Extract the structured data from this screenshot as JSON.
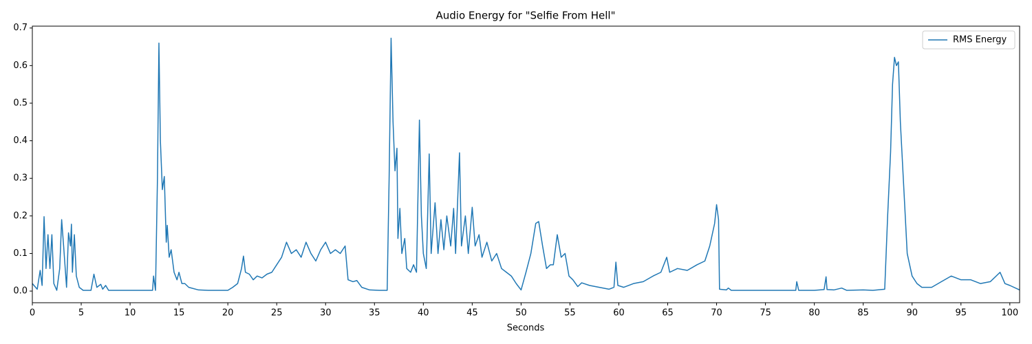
{
  "chart_data": {
    "type": "line",
    "title": "Audio Energy for \"Selfie From Hell\"",
    "xlabel": "Seconds",
    "x": [
      0,
      0.5,
      0.8,
      1.0,
      1.2,
      1.4,
      1.6,
      1.8,
      2.0,
      2.2,
      2.5,
      2.8,
      3.0,
      3.2,
      3.5,
      3.7,
      3.9,
      4.0,
      4.1,
      4.3,
      4.5,
      4.8,
      5.2,
      6.0,
      6.3,
      6.6,
      7.0,
      7.2,
      7.5,
      7.8,
      9,
      11,
      12.3,
      12.4,
      12.6,
      12.8,
      12.95,
      13.1,
      13.3,
      13.5,
      13.7,
      13.8,
      14.0,
      14.2,
      14.5,
      14.8,
      15.0,
      15.3,
      15.6,
      16,
      17,
      18,
      19,
      20,
      20.5,
      21,
      21.4,
      21.6,
      21.8,
      22.2,
      22.6,
      23,
      23.5,
      24,
      24.5,
      25,
      25.5,
      26,
      26.5,
      27,
      27.5,
      28,
      28.5,
      29,
      29.5,
      30,
      30.5,
      31,
      31.5,
      32,
      32.3,
      32.8,
      33.2,
      33.7,
      34.5,
      35.5,
      36.3,
      36.5,
      36.7,
      36.9,
      37.1,
      37.3,
      37.4,
      37.6,
      37.8,
      38.1,
      38.3,
      38.7,
      39.0,
      39.3,
      39.6,
      39.8,
      40.0,
      40.3,
      40.6,
      40.8,
      41.2,
      41.5,
      41.8,
      42.1,
      42.4,
      42.8,
      43.1,
      43.3,
      43.7,
      43.9,
      44.3,
      44.6,
      45.0,
      45.3,
      45.7,
      46.0,
      46.5,
      47.0,
      47.5,
      48,
      48.5,
      49,
      49.5,
      50,
      50.5,
      51,
      51.5,
      51.8,
      52.2,
      52.6,
      53,
      53.3,
      53.7,
      54.1,
      54.5,
      54.9,
      55.3,
      55.8,
      56.2,
      57,
      58,
      59,
      59.5,
      59.7,
      59.9,
      60.5,
      61.5,
      62.5,
      63.5,
      64.3,
      64.9,
      65.2,
      66,
      67,
      68,
      68.8,
      69.3,
      69.8,
      70.0,
      70.2,
      70.3,
      71,
      71.2,
      71.5,
      73,
      75,
      78.1,
      78.2,
      78.4,
      80,
      81,
      81.2,
      81.3,
      82,
      82.8,
      83.3,
      85,
      86,
      87.2,
      87.5,
      87.8,
      88.0,
      88.2,
      88.4,
      88.6,
      88.8,
      89.1,
      89.5,
      90,
      90.5,
      91,
      92,
      93,
      94,
      95,
      96,
      97,
      98,
      99,
      99.5,
      100,
      101
    ],
    "series": [
      {
        "name": "RMS Energy",
        "color": "#1f77b4",
        "values": [
          0.02,
          0.005,
          0.055,
          0.015,
          0.198,
          0.06,
          0.15,
          0.06,
          0.15,
          0.02,
          0.002,
          0.06,
          0.19,
          0.12,
          0.01,
          0.155,
          0.12,
          0.178,
          0.05,
          0.15,
          0.04,
          0.01,
          0.002,
          0.002,
          0.045,
          0.01,
          0.018,
          0.005,
          0.015,
          0.002,
          0.002,
          0.002,
          0.002,
          0.04,
          0.002,
          0.3,
          0.66,
          0.4,
          0.27,
          0.305,
          0.13,
          0.175,
          0.09,
          0.11,
          0.05,
          0.03,
          0.05,
          0.02,
          0.02,
          0.01,
          0.003,
          0.002,
          0.002,
          0.002,
          0.01,
          0.02,
          0.06,
          0.093,
          0.05,
          0.045,
          0.03,
          0.04,
          0.035,
          0.045,
          0.05,
          0.07,
          0.09,
          0.13,
          0.1,
          0.11,
          0.09,
          0.13,
          0.1,
          0.08,
          0.11,
          0.13,
          0.1,
          0.11,
          0.1,
          0.12,
          0.03,
          0.025,
          0.028,
          0.01,
          0.003,
          0.002,
          0.002,
          0.3,
          0.673,
          0.45,
          0.32,
          0.38,
          0.14,
          0.22,
          0.1,
          0.14,
          0.06,
          0.05,
          0.07,
          0.05,
          0.455,
          0.2,
          0.1,
          0.06,
          0.365,
          0.1,
          0.235,
          0.1,
          0.19,
          0.11,
          0.2,
          0.12,
          0.22,
          0.1,
          0.368,
          0.12,
          0.2,
          0.1,
          0.223,
          0.12,
          0.15,
          0.09,
          0.13,
          0.08,
          0.1,
          0.06,
          0.05,
          0.04,
          0.02,
          0.003,
          0.05,
          0.1,
          0.18,
          0.185,
          0.12,
          0.06,
          0.07,
          0.07,
          0.15,
          0.09,
          0.1,
          0.04,
          0.03,
          0.012,
          0.022,
          0.015,
          0.01,
          0.005,
          0.01,
          0.077,
          0.015,
          0.01,
          0.02,
          0.025,
          0.04,
          0.05,
          0.09,
          0.05,
          0.06,
          0.055,
          0.07,
          0.08,
          0.12,
          0.18,
          0.23,
          0.19,
          0.005,
          0.003,
          0.008,
          0.002,
          0.002,
          0.002,
          0.002,
          0.025,
          0.002,
          0.002,
          0.004,
          0.038,
          0.004,
          0.003,
          0.008,
          0.002,
          0.003,
          0.002,
          0.005,
          0.2,
          0.37,
          0.55,
          0.622,
          0.6,
          0.61,
          0.45,
          0.3,
          0.1,
          0.04,
          0.02,
          0.01,
          0.01,
          0.025,
          0.04,
          0.03,
          0.03,
          0.02,
          0.025,
          0.05,
          0.02,
          0.015,
          0.003
        ]
      }
    ],
    "xlim": [
      0,
      101
    ],
    "ylim": [
      -0.031,
      0.705
    ],
    "xticks": [
      0,
      5,
      10,
      15,
      20,
      25,
      30,
      35,
      40,
      45,
      50,
      55,
      60,
      65,
      70,
      75,
      80,
      85,
      90,
      95,
      100
    ],
    "yticks": [
      {
        "value": 0,
        "label": "0.0"
      },
      0.1,
      0.2,
      0.3,
      0.4,
      0.5,
      0.6,
      0.7
    ],
    "legend": "upper right"
  }
}
